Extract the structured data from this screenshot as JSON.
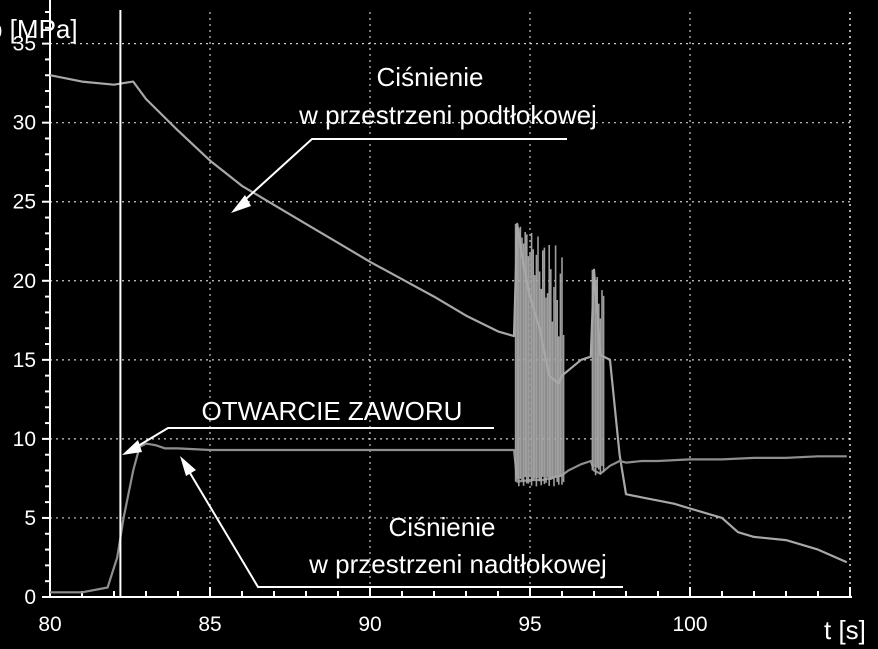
{
  "chart_data": {
    "type": "line",
    "xlabel": "t [s]",
    "ylabel": "p [MPa]",
    "xlim": [
      80,
      105
    ],
    "ylim": [
      0,
      37
    ],
    "xticks": [
      80,
      85,
      90,
      95,
      100
    ],
    "yticks": [
      0,
      5,
      10,
      15,
      20,
      25,
      30,
      35
    ],
    "grid": true,
    "colors": {
      "background": "#000000",
      "grid": "#ffffff",
      "axes": "#ffffff",
      "series_upper": "#a8a8a8",
      "series_lower": "#8e8e8e",
      "valve_line": "#ffffff"
    },
    "valve_open_time": 82.2,
    "annotations": {
      "upper_line1": "Ciśnienie",
      "upper_line2": "w przestrzeni podtłokowej",
      "valve": "OTWARCIE ZAWORU",
      "lower_line1": "Ciśnienie",
      "lower_line2": "w przestrzeni nadtłokowej"
    },
    "series": [
      {
        "x": [
          80,
          81,
          82,
          82.3,
          82.6,
          83,
          84,
          85,
          86,
          87,
          88,
          89,
          90,
          91,
          92,
          93,
          94,
          94.5,
          94.6,
          94.8,
          95,
          95.3,
          95.6,
          95.9,
          96.0,
          96.3,
          96.6,
          96.9,
          97.0,
          97.2,
          97.5,
          97.8,
          98.0,
          98.5,
          99,
          99.5,
          100,
          101,
          101.5,
          102,
          103,
          104,
          104.9
        ],
        "y": [
          33,
          32.6,
          32.4,
          32.5,
          32.6,
          31.5,
          29.5,
          27.6,
          26,
          24.8,
          23.6,
          22.4,
          21.2,
          20.1,
          19,
          17.8,
          16.8,
          16.5,
          23.6,
          21,
          19,
          17,
          14,
          13.5,
          14,
          14.5,
          15,
          15.2,
          20.7,
          15.3,
          15,
          9,
          6.5,
          6.3,
          6.1,
          5.9,
          5.6,
          5.0,
          4.1,
          3.8,
          3.6,
          3.0,
          2.2
        ]
      },
      {
        "x": [
          80,
          81,
          81.8,
          82.1,
          82.3,
          82.6,
          82.8,
          83,
          83.3,
          83.6,
          84,
          85,
          88,
          91,
          94,
          94.5,
          94.6,
          95,
          95.4,
          95.8,
          96.0,
          96.2,
          96.6,
          96.9,
          97.0,
          97.2,
          97.5,
          97.8,
          98.0,
          98.5,
          99,
          100,
          101,
          102,
          103,
          104,
          104.9
        ],
        "y": [
          0.3,
          0.3,
          0.6,
          2.5,
          5,
          8,
          9.5,
          9.7,
          9.6,
          9.4,
          9.4,
          9.3,
          9.3,
          9.3,
          9.3,
          9.3,
          7.3,
          7.4,
          7.4,
          7.6,
          7.7,
          8.0,
          8.4,
          8.6,
          8.0,
          7.8,
          8.3,
          8.6,
          8.5,
          8.6,
          8.6,
          8.7,
          8.7,
          8.8,
          8.8,
          8.9,
          8.9
        ]
      }
    ]
  }
}
